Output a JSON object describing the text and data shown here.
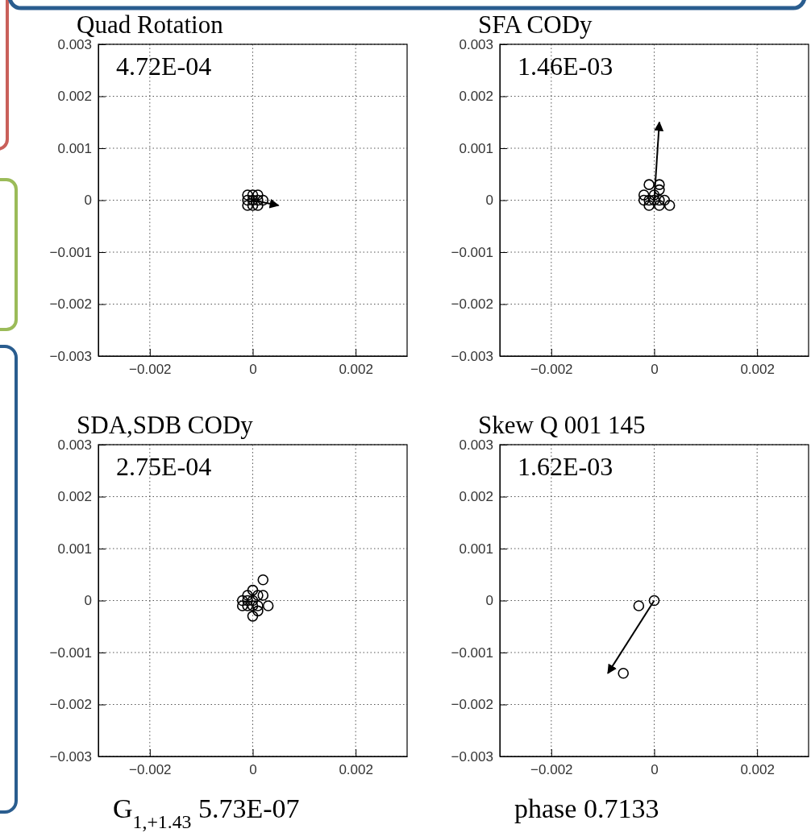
{
  "chart_data": [
    {
      "type": "scatter",
      "title": "Quad Rotation",
      "annotations": [
        "4.72E-04"
      ],
      "xlim": [
        -0.003,
        0.003
      ],
      "ylim": [
        -0.003,
        0.003
      ],
      "xticks": [
        -0.002,
        0,
        0.002
      ],
      "yticks": [
        0.003,
        0.002,
        0.001,
        0,
        -0.001,
        -0.002,
        -0.003
      ],
      "grid": true,
      "marker": "circle",
      "series": [
        {
          "color": "#000000",
          "x": [
            0,
            0.0001,
            -0.0001,
            0,
            -0.0001,
            0.0001,
            -0.0001,
            0,
            0.0001,
            0.0002
          ],
          "values": [
            0,
            0,
            0,
            0.0001,
            0.0001,
            -0.0001,
            -0.0001,
            -0.0001,
            0.0001,
            0
          ]
        },
        {
          "type": "line",
          "marker": "none",
          "color": "#000000",
          "x": [
            0,
            0.0005
          ],
          "values": [
            0,
            -0.0001
          ]
        }
      ]
    },
    {
      "type": "scatter",
      "title": "SFA CODy",
      "annotations": [
        "1.46E-03"
      ],
      "xlim": [
        -0.003,
        0.003
      ],
      "ylim": [
        -0.003,
        0.003
      ],
      "xticks": [
        -0.002,
        0,
        0.002
      ],
      "yticks": [
        0.003,
        0.002,
        0.001,
        0,
        -0.001,
        -0.002,
        -0.003
      ],
      "grid": true,
      "marker": "circle",
      "series": [
        {
          "color": "#000000",
          "x": [
            -0.0001,
            0.0001,
            0.0001,
            -0.0002,
            -0.0002,
            0.0002,
            0.0003,
            -0.0001,
            0.0001,
            0,
            0,
            0.0001,
            -0.0001
          ],
          "values": [
            0.0003,
            0.0003,
            0.0002,
            0.0001,
            0,
            0,
            -0.0001,
            -0.0001,
            -0.0001,
            0,
            0.0001,
            0,
            0
          ]
        },
        {
          "type": "line",
          "marker": "none",
          "color": "#000000",
          "x": [
            0,
            0.0001
          ],
          "values": [
            0,
            0.0015
          ]
        }
      ]
    },
    {
      "type": "scatter",
      "title": "SDA,SDB CODy",
      "annotations": [
        "2.75E-04",
        "G$_{1,+1.43}$  5.73E-07"
      ],
      "xlim": [
        -0.003,
        0.003
      ],
      "ylim": [
        -0.003,
        0.003
      ],
      "xticks": [
        -0.002,
        0,
        0.002
      ],
      "yticks": [
        0.003,
        0.002,
        0.001,
        0,
        -0.001,
        -0.002,
        -0.003
      ],
      "grid": true,
      "marker": "circle",
      "series": [
        {
          "color": "#000000",
          "x": [
            0.0002,
            0,
            -0.0002,
            0.0003,
            0,
            0.0001,
            -0.0002,
            0.0002,
            0,
            0.0001,
            -0.0001,
            0,
            -0.0001,
            0.0001,
            -0.0001
          ],
          "values": [
            0.0004,
            0.0002,
            -0.0001,
            -0.0001,
            -0.0003,
            -0.0002,
            0,
            0.0001,
            0,
            0.0001,
            0.0001,
            -0.0001,
            -0.0001,
            -0.0001,
            0
          ]
        }
      ]
    },
    {
      "type": "scatter",
      "title": "Skew Q 001 145",
      "annotations": [
        "1.62E-03",
        "phase    0.7133"
      ],
      "xlim": [
        -0.003,
        0.003
      ],
      "ylim": [
        -0.003,
        0.003
      ],
      "xticks": [
        -0.002,
        0,
        0.002
      ],
      "yticks": [
        0.003,
        0.002,
        0.001,
        0,
        -0.001,
        -0.002,
        -0.003
      ],
      "grid": true,
      "marker": "circle",
      "series": [
        {
          "color": "#000000",
          "x": [
            0,
            -0.0003,
            -0.0006
          ],
          "values": [
            0,
            -0.0001,
            -0.0014
          ]
        },
        {
          "type": "line",
          "marker": "none",
          "color": "#000000",
          "x": [
            0,
            -0.0009
          ],
          "values": [
            0,
            -0.0014
          ]
        }
      ]
    }
  ]
}
